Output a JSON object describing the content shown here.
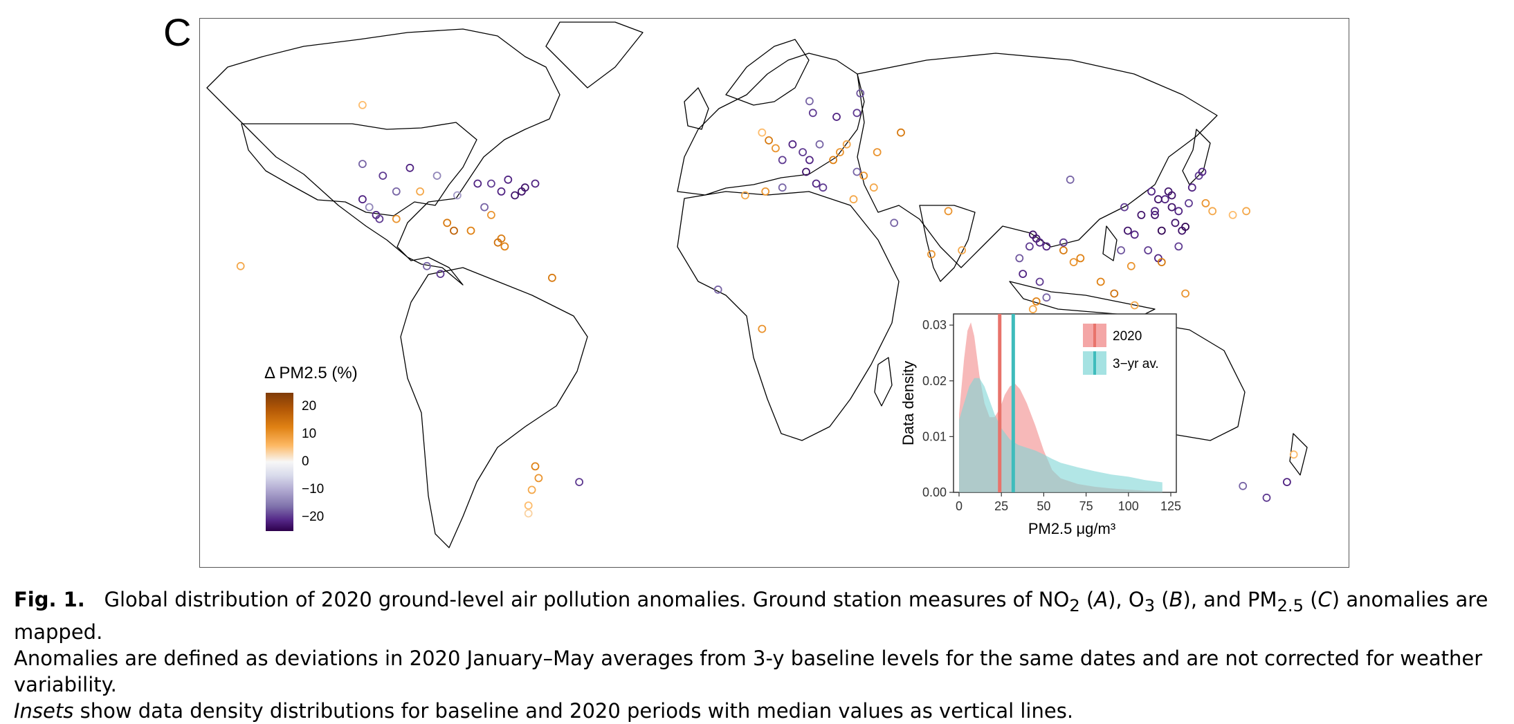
{
  "panel_letter": "C",
  "legend": {
    "title": "Δ PM2.5  (%)",
    "ticks": [
      {
        "label": "20",
        "value": 20
      },
      {
        "label": "10",
        "value": 10
      },
      {
        "label": "0",
        "value": 0
      },
      {
        "label": "−10",
        "value": -10
      },
      {
        "label": "−20",
        "value": -20
      }
    ],
    "range": [
      -25,
      25
    ],
    "colors": [
      "#7f3b08",
      "#b35806",
      "#e08214",
      "#fdb863",
      "#f7f7f7",
      "#d8daeb",
      "#b2abd2",
      "#8073ac",
      "#542788",
      "#2d004b"
    ]
  },
  "chart_data": {
    "type": "area",
    "xlabel": "PM2.5 μg/m³",
    "ylabel": "Data density",
    "xlim": [
      0,
      125
    ],
    "ylim": [
      0,
      0.032
    ],
    "x_ticks": [
      0,
      25,
      50,
      75,
      100,
      125
    ],
    "x_tick_labels": [
      "0",
      "25",
      "50",
      "75",
      "100",
      "125"
    ],
    "y_ticks": [
      0,
      0.01,
      0.02,
      0.03
    ],
    "y_tick_labels": [
      "0.00",
      "0.01",
      "0.02",
      "0.03"
    ],
    "legend_position": "top-right",
    "series": [
      {
        "name": "2020",
        "color": "#f08080",
        "median": 24,
        "x": [
          0,
          3,
          5,
          7,
          9,
          12,
          15,
          18,
          21,
          24,
          27,
          30,
          33,
          36,
          40,
          45,
          50,
          55,
          60,
          70,
          80,
          90,
          100,
          110,
          120
        ],
        "y": [
          0.014,
          0.024,
          0.029,
          0.0305,
          0.028,
          0.021,
          0.016,
          0.0135,
          0.0135,
          0.015,
          0.0175,
          0.019,
          0.0195,
          0.0185,
          0.016,
          0.012,
          0.0075,
          0.004,
          0.0025,
          0.0015,
          0.001,
          0.0007,
          0.0005,
          0.0003,
          0.0002
        ]
      },
      {
        "name": "3−yr av.",
        "color": "#7fd6d6",
        "median": 32,
        "x": [
          0,
          3,
          6,
          9,
          12,
          15,
          18,
          21,
          25,
          30,
          35,
          40,
          45,
          50,
          55,
          60,
          70,
          80,
          90,
          100,
          110,
          120
        ],
        "y": [
          0.013,
          0.016,
          0.019,
          0.0205,
          0.0205,
          0.019,
          0.0165,
          0.014,
          0.0115,
          0.0095,
          0.0085,
          0.008,
          0.0075,
          0.0068,
          0.006,
          0.0053,
          0.0045,
          0.0038,
          0.0032,
          0.0028,
          0.0022,
          0.0018
        ]
      }
    ]
  },
  "stations": [
    {
      "lon": -122,
      "lat": 47,
      "delta": -15
    },
    {
      "lon": -122,
      "lat": 38,
      "delta": -20
    },
    {
      "lon": -118,
      "lat": 34,
      "delta": -20
    },
    {
      "lon": -117,
      "lat": 33,
      "delta": -18
    },
    {
      "lon": -120,
      "lat": 36,
      "delta": -12
    },
    {
      "lon": -112,
      "lat": 33,
      "delta": 12
    },
    {
      "lon": -112,
      "lat": 40,
      "delta": -15
    },
    {
      "lon": -105,
      "lat": 40,
      "delta": 10
    },
    {
      "lon": -97,
      "lat": 32,
      "delta": 15
    },
    {
      "lon": -95,
      "lat": 30,
      "delta": 18
    },
    {
      "lon": -90,
      "lat": 30,
      "delta": 14
    },
    {
      "lon": -94,
      "lat": 39,
      "delta": -10
    },
    {
      "lon": -88,
      "lat": 42,
      "delta": -20
    },
    {
      "lon": -84,
      "lat": 42,
      "delta": -18
    },
    {
      "lon": -81,
      "lat": 40,
      "delta": -20
    },
    {
      "lon": -79,
      "lat": 43,
      "delta": -20
    },
    {
      "lon": -77,
      "lat": 39,
      "delta": -22
    },
    {
      "lon": -75,
      "lat": 40,
      "delta": -22
    },
    {
      "lon": -74,
      "lat": 41,
      "delta": -22
    },
    {
      "lon": -71,
      "lat": 42,
      "delta": -20
    },
    {
      "lon": -84,
      "lat": 34,
      "delta": 12
    },
    {
      "lon": -81,
      "lat": 28,
      "delta": 15
    },
    {
      "lon": -82,
      "lat": 27,
      "delta": 16
    },
    {
      "lon": -80,
      "lat": 26,
      "delta": 14
    },
    {
      "lon": -86,
      "lat": 36,
      "delta": -15
    },
    {
      "lon": -100,
      "lat": 44,
      "delta": -12
    },
    {
      "lon": -108,
      "lat": 46,
      "delta": -20
    },
    {
      "lon": -116,
      "lat": 44,
      "delta": -18
    },
    {
      "lon": -99,
      "lat": 19,
      "delta": -18
    },
    {
      "lon": -103,
      "lat": 21,
      "delta": -15
    },
    {
      "lon": -66,
      "lat": 18,
      "delta": 15
    },
    {
      "lon": -70,
      "lat": -33,
      "delta": 12
    },
    {
      "lon": -72,
      "lat": -36,
      "delta": 10
    },
    {
      "lon": -71,
      "lat": -30,
      "delta": 14
    },
    {
      "lon": -73,
      "lat": -40,
      "delta": 8
    },
    {
      "lon": -73,
      "lat": -42,
      "delta": 6
    },
    {
      "lon": -58,
      "lat": -34,
      "delta": -18
    },
    {
      "lon": -3,
      "lat": 40,
      "delta": 12
    },
    {
      "lon": 2,
      "lat": 41,
      "delta": -15
    },
    {
      "lon": -9,
      "lat": 39,
      "delta": 10
    },
    {
      "lon": 2,
      "lat": 48,
      "delta": -18
    },
    {
      "lon": 5,
      "lat": 52,
      "delta": -20
    },
    {
      "lon": 0,
      "lat": 51,
      "delta": 12
    },
    {
      "lon": -2,
      "lat": 53,
      "delta": 15
    },
    {
      "lon": -4,
      "lat": 55,
      "delta": 8
    },
    {
      "lon": 8,
      "lat": 50,
      "delta": -18
    },
    {
      "lon": 10,
      "lat": 48,
      "delta": -20
    },
    {
      "lon": 13,
      "lat": 52,
      "delta": -15
    },
    {
      "lon": 9,
      "lat": 45,
      "delta": -22
    },
    {
      "lon": 12,
      "lat": 42,
      "delta": -20
    },
    {
      "lon": 14,
      "lat": 41,
      "delta": -18
    },
    {
      "lon": 17,
      "lat": 48,
      "delta": 14
    },
    {
      "lon": 19,
      "lat": 50,
      "delta": 12
    },
    {
      "lon": 21,
      "lat": 52,
      "delta": 10
    },
    {
      "lon": 24,
      "lat": 45,
      "delta": -15
    },
    {
      "lon": 26,
      "lat": 44,
      "delta": 12
    },
    {
      "lon": 23,
      "lat": 38,
      "delta": 10
    },
    {
      "lon": 24,
      "lat": 60,
      "delta": -18
    },
    {
      "lon": 18,
      "lat": 59,
      "delta": -20
    },
    {
      "lon": 11,
      "lat": 60,
      "delta": -18
    },
    {
      "lon": 10,
      "lat": 63,
      "delta": -15
    },
    {
      "lon": 25,
      "lat": 65,
      "delta": -16
    },
    {
      "lon": 37,
      "lat": 55,
      "delta": 15
    },
    {
      "lon": 30,
      "lat": 50,
      "delta": 12
    },
    {
      "lon": 29,
      "lat": 41,
      "delta": 10
    },
    {
      "lon": 35,
      "lat": 32,
      "delta": -15
    },
    {
      "lon": 46,
      "lat": 24,
      "delta": 12
    },
    {
      "lon": 55,
      "lat": 25,
      "delta": 10
    },
    {
      "lon": 51,
      "lat": 35,
      "delta": 12
    },
    {
      "lon": 77,
      "lat": 28,
      "delta": -22
    },
    {
      "lon": 78,
      "lat": 27,
      "delta": -20
    },
    {
      "lon": 76,
      "lat": 29,
      "delta": -22
    },
    {
      "lon": 80,
      "lat": 26,
      "delta": -20
    },
    {
      "lon": 75,
      "lat": 26,
      "delta": -18
    },
    {
      "lon": 72,
      "lat": 23,
      "delta": -16
    },
    {
      "lon": 73,
      "lat": 19,
      "delta": -20
    },
    {
      "lon": 78,
      "lat": 17,
      "delta": -18
    },
    {
      "lon": 80,
      "lat": 13,
      "delta": -15
    },
    {
      "lon": 77,
      "lat": 12,
      "delta": 14
    },
    {
      "lon": 76,
      "lat": 10,
      "delta": 10
    },
    {
      "lon": 85,
      "lat": 25,
      "delta": 15
    },
    {
      "lon": 88,
      "lat": 22,
      "delta": 12
    },
    {
      "lon": 90,
      "lat": 23,
      "delta": 14
    },
    {
      "lon": 85,
      "lat": 27,
      "delta": -18
    },
    {
      "lon": 100,
      "lat": 14,
      "delta": 16
    },
    {
      "lon": 96,
      "lat": 17,
      "delta": 14
    },
    {
      "lon": 105,
      "lat": 21,
      "delta": 12
    },
    {
      "lon": 106,
      "lat": 11,
      "delta": 10
    },
    {
      "lon": 103,
      "lat": 1,
      "delta": 8
    },
    {
      "lon": 107,
      "lat": -6,
      "delta": 6
    },
    {
      "lon": 101,
      "lat": 3,
      "delta": 10
    },
    {
      "lon": 121,
      "lat": 14,
      "delta": 12
    },
    {
      "lon": 104,
      "lat": 30,
      "delta": -22
    },
    {
      "lon": 106,
      "lat": 29,
      "delta": -20
    },
    {
      "lon": 108,
      "lat": 34,
      "delta": -22
    },
    {
      "lon": 112,
      "lat": 34,
      "delta": -22
    },
    {
      "lon": 114,
      "lat": 30,
      "delta": -24
    },
    {
      "lon": 116,
      "lat": 40,
      "delta": -22
    },
    {
      "lon": 117,
      "lat": 39,
      "delta": -22
    },
    {
      "lon": 115,
      "lat": 38,
      "delta": -20
    },
    {
      "lon": 113,
      "lat": 38,
      "delta": -22
    },
    {
      "lon": 112,
      "lat": 35,
      "delta": -20
    },
    {
      "lon": 118,
      "lat": 32,
      "delta": -22
    },
    {
      "lon": 120,
      "lat": 30,
      "delta": -22
    },
    {
      "lon": 121,
      "lat": 31,
      "delta": -24
    },
    {
      "lon": 119,
      "lat": 26,
      "delta": -18
    },
    {
      "lon": 113,
      "lat": 23,
      "delta": -20
    },
    {
      "lon": 114,
      "lat": 22,
      "delta": 15
    },
    {
      "lon": 110,
      "lat": 25,
      "delta": -18
    },
    {
      "lon": 102,
      "lat": 25,
      "delta": -16
    },
    {
      "lon": 117,
      "lat": 36,
      "delta": -22
    },
    {
      "lon": 119,
      "lat": 35,
      "delta": -20
    },
    {
      "lon": 122,
      "lat": 37,
      "delta": -18
    },
    {
      "lon": 123,
      "lat": 41,
      "delta": -20
    },
    {
      "lon": 125,
      "lat": 44,
      "delta": -18
    },
    {
      "lon": 126,
      "lat": 45,
      "delta": -20
    },
    {
      "lon": 87,
      "lat": 43,
      "delta": -15
    },
    {
      "lon": 103,
      "lat": 36,
      "delta": -18
    },
    {
      "lon": 111,
      "lat": 40,
      "delta": -20
    },
    {
      "lon": 127,
      "lat": 37,
      "delta": 12
    },
    {
      "lon": 129,
      "lat": 35,
      "delta": 10
    },
    {
      "lon": 139,
      "lat": 35,
      "delta": 10
    },
    {
      "lon": 135,
      "lat": 34,
      "delta": 8
    },
    {
      "lon": 151,
      "lat": -34,
      "delta": -20
    },
    {
      "lon": 145,
      "lat": -38,
      "delta": -18
    },
    {
      "lon": 153,
      "lat": -27,
      "delta": 8
    },
    {
      "lon": 138,
      "lat": -35,
      "delta": -15
    },
    {
      "lon": 116,
      "lat": -32,
      "delta": -12
    },
    {
      "lon": -17,
      "lat": 15,
      "delta": -15
    },
    {
      "lon": -4,
      "lat": 5,
      "delta": 12
    },
    {
      "lon": -122,
      "lat": 62,
      "delta": 8
    },
    {
      "lon": -158,
      "lat": 21,
      "delta": 10
    }
  ],
  "caption": {
    "fig_label": "Fig. 1.",
    "line1_a": "Global distribution of 2020 ground-level air pollution anomalies. Ground station measures of NO",
    "line1_b": " (",
    "line1_c": "A",
    "line1_d": "), O",
    "line1_e": " (",
    "line1_f": "B",
    "line1_g": "), and PM",
    "line1_h": " (",
    "line1_i": "C",
    "line1_j": ") anomalies are mapped.",
    "sub_2": "2",
    "sub_3": "3",
    "sub_25": "2.5",
    "line2": "Anomalies are defined as deviations in 2020 January–May averages from 3-y baseline levels for the same dates and are not corrected for weather variability.",
    "line3_a": "Insets",
    "line3_b": " show data density distributions for baseline and 2020 periods with median values as vertical lines."
  }
}
